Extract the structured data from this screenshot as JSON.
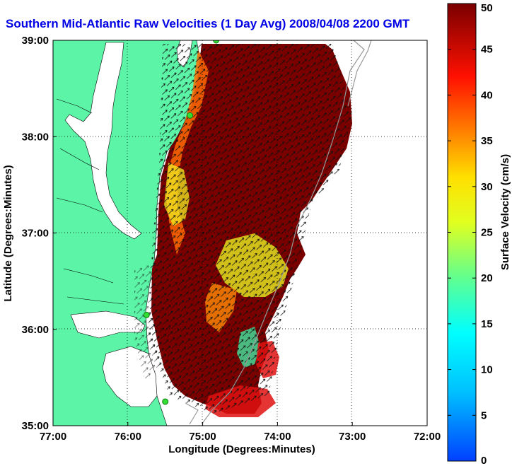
{
  "title": "Southern Mid-Atlantic Raw Velocities (1 Day Avg) 2008/04/08 2200 GMT",
  "axes": {
    "xlabel": "Longitude (Degrees:Minutes)",
    "ylabel": "Latitude (Degrees:Minutes)",
    "x_ticks": [
      "77:00",
      "76:00",
      "75:00",
      "74:00",
      "73:00",
      "72:00"
    ],
    "y_ticks": [
      "39:00",
      "38:00",
      "37:00",
      "36:00",
      "35:00"
    ],
    "grid": "dotted"
  },
  "colorbar": {
    "label": "Surface Velocity (cm/s)",
    "ticks": [
      "50",
      "45",
      "40",
      "35",
      "30",
      "25",
      "20",
      "15",
      "10",
      "5",
      "0"
    ],
    "range": [
      0,
      50
    ],
    "colormap": "jet"
  },
  "colors": {
    "land": "#5cf5a8",
    "water": "#ffffff",
    "title": "#0000e6",
    "station": "#33dd33"
  },
  "stations": [
    {
      "lon": -74.82,
      "lat": 39.0
    },
    {
      "lon": -75.17,
      "lat": 38.22
    },
    {
      "lon": -75.75,
      "lat": 36.15
    },
    {
      "lon": -75.5,
      "lat": 35.25
    }
  ]
}
